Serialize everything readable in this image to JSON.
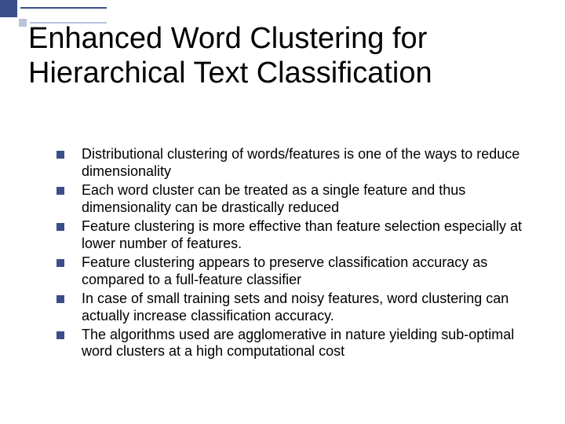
{
  "slide": {
    "title": "Enhanced Word Clustering for Hierarchical Text Classification",
    "bullets": [
      "Distributional clustering of words/features is one of the ways to reduce dimensionality",
      "Each word cluster can be treated as a single feature and thus dimensionality can be drastically reduced",
      "Feature clustering is more effective than feature selection especially at lower number of features.",
      "Feature clustering appears to preserve classification accuracy as compared to a full-feature classifier",
      "In case of small training sets and noisy features, word clustering can actually increase classification accuracy.",
      "The algorithms used are agglomerative in nature yielding sub-optimal word clusters at a high computational cost"
    ]
  },
  "style": {
    "accent_color": "#3a4f8a",
    "accent_light": "#b9c3dc",
    "background_color": "#ffffff",
    "title_fontsize": 38,
    "body_fontsize": 18,
    "bullet_marker": "square"
  }
}
